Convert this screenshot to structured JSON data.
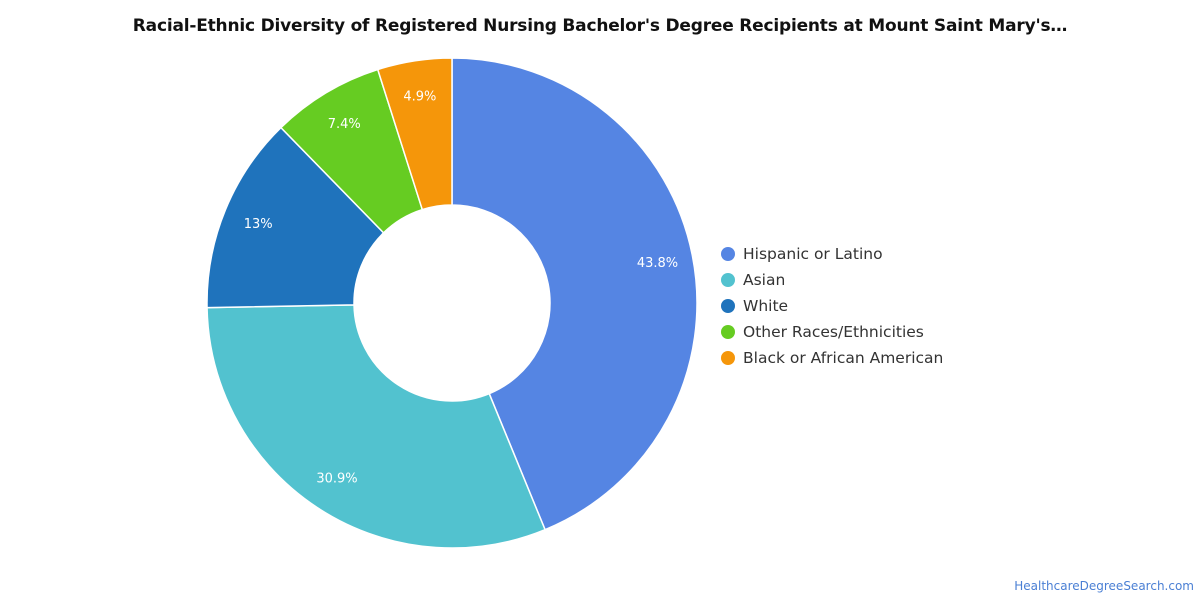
{
  "chart_data": {
    "type": "pie",
    "title": "Racial-Ethnic Diversity of Registered Nursing Bachelor's Degree Recipients at Mount Saint Mary's…",
    "categories": [
      "Hispanic or Latino",
      "Asian",
      "White",
      "Other Races/Ethnicities",
      "Black or African American"
    ],
    "values": [
      43.8,
      30.9,
      13,
      7.4,
      4.9
    ],
    "labels": [
      "43.8%",
      "30.9%",
      "13%",
      "7.4%",
      "4.9%"
    ],
    "colors": [
      "#5585e3",
      "#52c2cf",
      "#1f73bc",
      "#66cc22",
      "#f5960a"
    ],
    "donut": true,
    "legend_position": "right"
  },
  "source": "HealthcareDegreeSearch.com"
}
